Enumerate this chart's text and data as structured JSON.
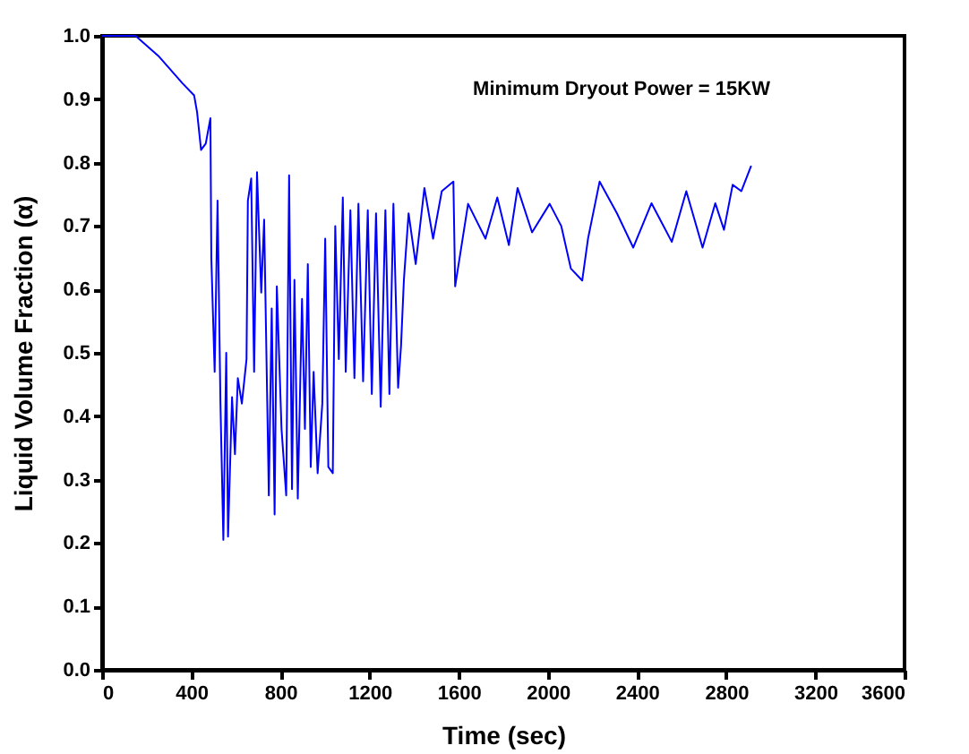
{
  "chart_data": {
    "type": "line",
    "xlabel": "Time (sec)",
    "ylabel": "Liquid Volume Fraction (α)",
    "annotations": [
      "Minimum Dryout Power = 15KW"
    ],
    "xlim": [
      0,
      3600
    ],
    "xticks": [
      0,
      400,
      800,
      1200,
      1600,
      2000,
      2400,
      2800,
      3200,
      3600
    ],
    "ylim": [
      0,
      1
    ],
    "yticks": [
      {
        "value": 0,
        "label": "0.0"
      },
      0.1,
      0.2,
      0.3,
      0.4,
      0.5,
      0.6,
      0.7,
      0.8,
      0.9,
      {
        "value": 1,
        "label": "1.0"
      }
    ],
    "grid": false,
    "marker": "none",
    "line_style": "solid",
    "series": [
      {
        "color": "#0000ff",
        "x": [
          0,
          150,
          256,
          361,
          413,
          426,
          444,
          465,
          486,
          490,
          505,
          518,
          531,
          544,
          557,
          565,
          583,
          596,
          609,
          627,
          648,
          654,
          669,
          682,
          695,
          714,
          727,
          748,
          761,
          774,
          784,
          805,
          826,
          839,
          852,
          863,
          878,
          897,
          910,
          923,
          936,
          949,
          967,
          988,
          1001,
          1015,
          1035,
          1046,
          1062,
          1080,
          1093,
          1114,
          1132,
          1150,
          1171,
          1192,
          1210,
          1229,
          1250,
          1271,
          1289,
          1307,
          1328,
          1341,
          1354,
          1375,
          1407,
          1446,
          1485,
          1524,
          1576,
          1584,
          1642,
          1720,
          1773,
          1825,
          1864,
          1929,
          2008,
          2060,
          2103,
          2154,
          2180,
          2232,
          2310,
          2383,
          2465,
          2556,
          2621,
          2694,
          2751,
          2790,
          2829,
          2868,
          2912
        ],
        "values": [
          1.0,
          1.0,
          0.967,
          0.925,
          0.906,
          0.88,
          0.82,
          0.83,
          0.87,
          0.65,
          0.47,
          0.74,
          0.42,
          0.205,
          0.5,
          0.21,
          0.43,
          0.34,
          0.46,
          0.42,
          0.49,
          0.74,
          0.775,
          0.47,
          0.785,
          0.595,
          0.71,
          0.275,
          0.57,
          0.245,
          0.605,
          0.38,
          0.275,
          0.78,
          0.285,
          0.615,
          0.27,
          0.585,
          0.38,
          0.64,
          0.32,
          0.47,
          0.31,
          0.42,
          0.68,
          0.32,
          0.31,
          0.7,
          0.49,
          0.745,
          0.47,
          0.725,
          0.46,
          0.735,
          0.455,
          0.725,
          0.435,
          0.72,
          0.415,
          0.725,
          0.435,
          0.735,
          0.445,
          0.51,
          0.615,
          0.72,
          0.64,
          0.76,
          0.68,
          0.755,
          0.77,
          0.605,
          0.735,
          0.68,
          0.745,
          0.67,
          0.76,
          0.69,
          0.735,
          0.7,
          0.633,
          0.614,
          0.68,
          0.77,
          0.72,
          0.666,
          0.736,
          0.675,
          0.755,
          0.666,
          0.736,
          0.694,
          0.765,
          0.755,
          0.795
        ]
      }
    ]
  }
}
